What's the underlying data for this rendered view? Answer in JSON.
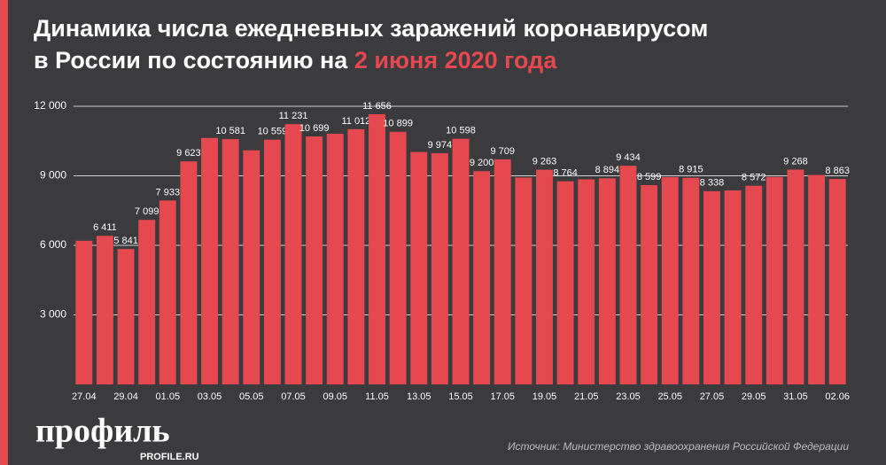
{
  "chart_data": {
    "type": "bar",
    "title_line1": "Динамика числа ежедневных заражений коронавирусом",
    "title_line2": "в России по состоянию на",
    "title_highlight": "2 июня 2020 года",
    "categories": [
      "27.04",
      null,
      "29.04",
      null,
      "01.05",
      null,
      "03.05",
      null,
      "05.05",
      null,
      "07.05",
      null,
      "09.05",
      null,
      "11.05",
      null,
      "13.05",
      null,
      "15.05",
      null,
      "17.05",
      null,
      "19.05",
      null,
      "21.05",
      null,
      "23.05",
      null,
      "25.05",
      null,
      "27.05",
      null,
      "29.05",
      null,
      "31.05",
      null,
      "02.06"
    ],
    "values": [
      6198,
      6411,
      5841,
      7099,
      7933,
      9623,
      10633,
      10581,
      10102,
      10559,
      11231,
      10699,
      10817,
      11012,
      11656,
      10899,
      10028,
      9974,
      10598,
      9200,
      9709,
      8926,
      9263,
      8764,
      8849,
      8894,
      9434,
      8599,
      8946,
      8915,
      8338,
      8371,
      8572,
      8952,
      9268,
      9035,
      8863
    ],
    "value_labels": [
      null,
      "6 411",
      "5 841",
      "7 099",
      "7 933",
      "9 623",
      null,
      "10 581",
      null,
      "10 559",
      "11 231",
      "10 699",
      null,
      "11 012",
      "11 656",
      "10 899",
      null,
      "9 974",
      "10 598",
      "9 200",
      "9 709",
      null,
      "9 263",
      "8 764",
      null,
      "8 894",
      "9 434",
      "8 599",
      null,
      "8 915",
      "8 338",
      null,
      "8 572",
      null,
      "9 268",
      null,
      "8 863"
    ],
    "color": "#e5484f",
    "ylim": [
      0,
      12000
    ],
    "yticks": [
      {
        "value": 3000,
        "label": "3 000"
      },
      {
        "value": 6000,
        "label": "6 000"
      },
      {
        "value": 9000,
        "label": "9 000"
      },
      {
        "value": 12000,
        "label": "12 000"
      }
    ],
    "grid": true,
    "source": "Источник: Министерство здравоохранения Российской Федерации",
    "logo": "профиль",
    "logo_url": "PROFILE.RU"
  }
}
